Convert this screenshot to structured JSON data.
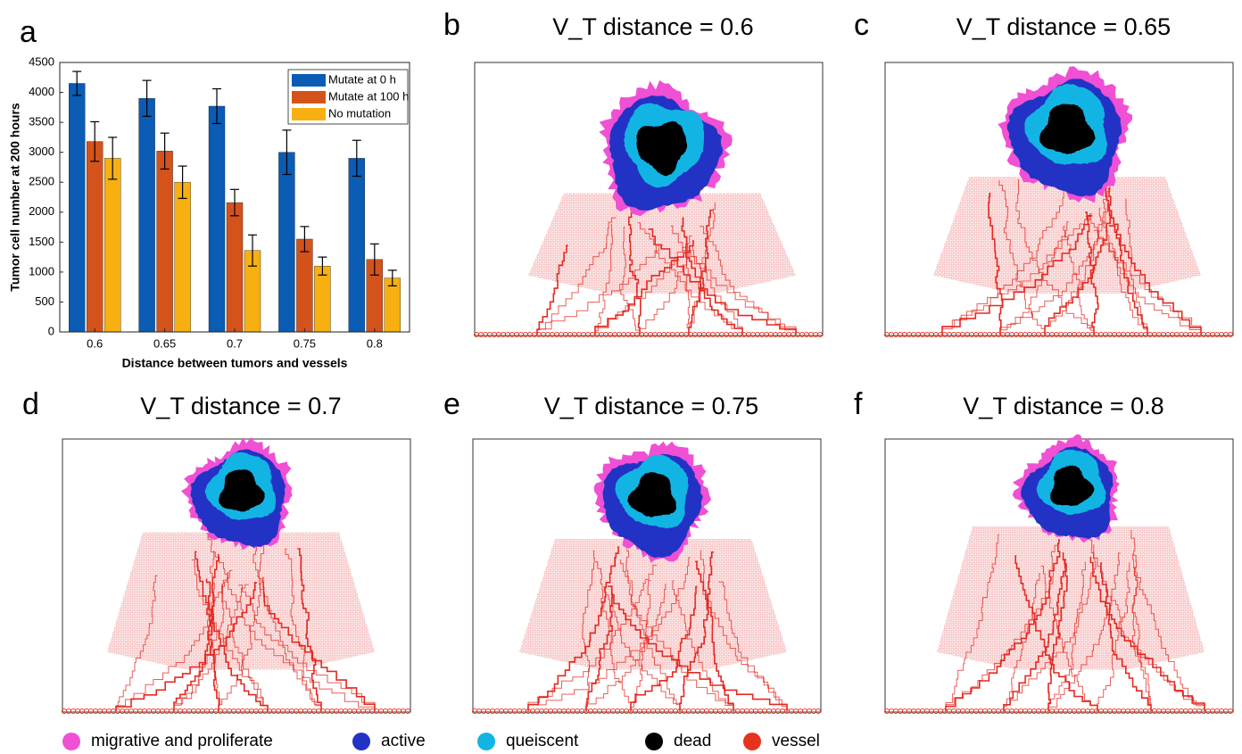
{
  "chart_data": {
    "type": "bar",
    "panel_label": "a",
    "xlabel": "Distance between tumors and vessels",
    "ylabel": "Tumor cell number at 200 hours",
    "categories": [
      "0.6",
      "0.65",
      "0.7",
      "0.75",
      "0.8"
    ],
    "series": [
      {
        "name": "Mutate at 0 h",
        "color": "#0a5cb4",
        "values": [
          4150,
          3900,
          3770,
          3000,
          2900
        ],
        "errors": [
          200,
          300,
          290,
          370,
          300
        ]
      },
      {
        "name": "Mutate at 100 h",
        "color": "#d4531b",
        "values": [
          3180,
          3020,
          2160,
          1550,
          1210
        ],
        "errors": [
          330,
          300,
          220,
          210,
          260
        ]
      },
      {
        "name": "No mutation",
        "color": "#f7b00f",
        "values": [
          2900,
          2500,
          1360,
          1100,
          900
        ],
        "errors": [
          350,
          270,
          260,
          150,
          130
        ]
      }
    ],
    "ylim": [
      0,
      4500
    ],
    "yticks": [
      0,
      500,
      1000,
      1500,
      2000,
      2500,
      3000,
      3500,
      4000,
      4500
    ],
    "grid": false,
    "legend": "upper right"
  },
  "panels": [
    {
      "label": "b",
      "title": "V_T distance = 0.6"
    },
    {
      "label": "c",
      "title": "V_T distance = 0.65"
    },
    {
      "label": "d",
      "title": "V_T distance = 0.7"
    },
    {
      "label": "e",
      "title": "V_T distance = 0.75"
    },
    {
      "label": "f",
      "title": "V_T distance = 0.8"
    }
  ],
  "legend": [
    {
      "label": "migrative and proliferate",
      "color": "#f050d4"
    },
    {
      "label": "active",
      "color": "#2232c4"
    },
    {
      "label": "queiscent",
      "color": "#12b4e4"
    },
    {
      "label": "dead",
      "color": "#000000"
    },
    {
      "label": "vessel",
      "color": "#e8321e"
    }
  ]
}
